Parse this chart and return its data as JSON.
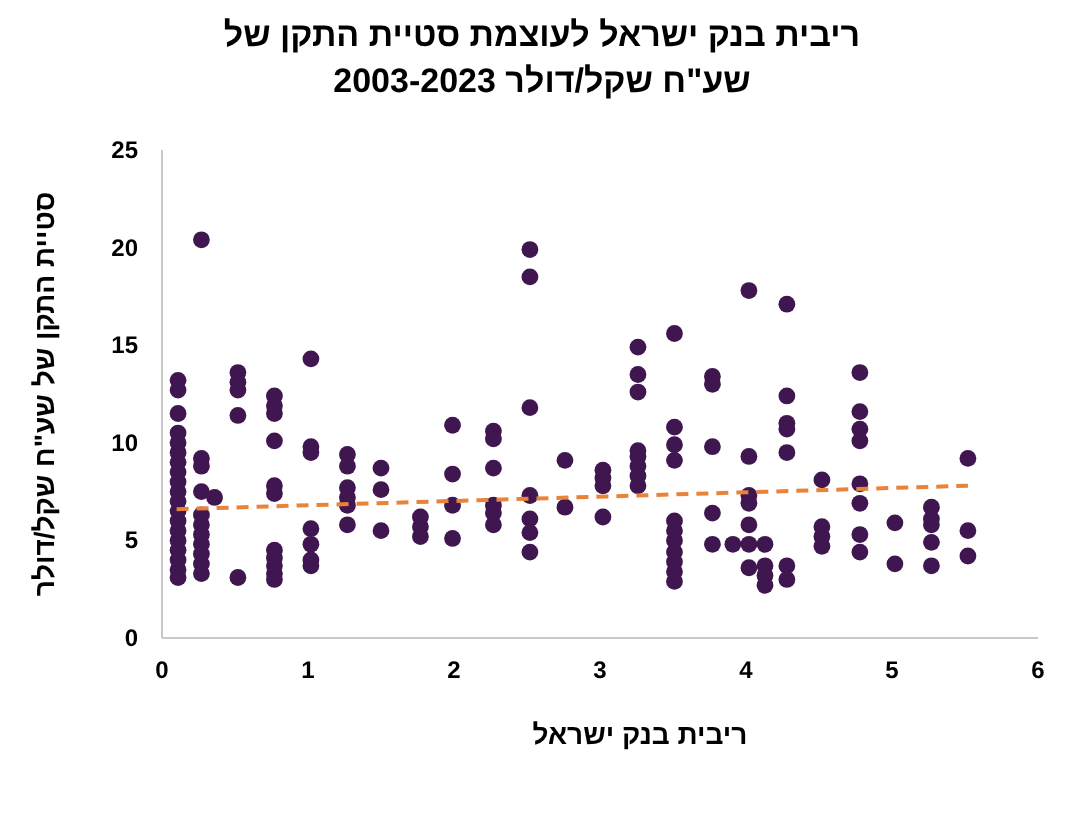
{
  "chart_data": {
    "type": "scatter",
    "title": "ריבית בנק ישראל לעוצמת סטיית התקן של שע\"ח שקל/דולר 2003-2023",
    "xlabel": "ריבית בנק ישראל",
    "ylabel": "סטיית התקן של שע\"ח שקל/דולר",
    "xlim": [
      0,
      6
    ],
    "ylim": [
      0,
      25
    ],
    "xticks": [
      0,
      1,
      2,
      3,
      4,
      5,
      6
    ],
    "yticks": [
      0,
      5,
      10,
      15,
      20,
      25
    ],
    "marker": "circle",
    "series": [
      {
        "color": "#3f1650",
        "x": [
          0.11,
          0.11,
          0.11,
          0.11,
          0.11,
          0.11,
          0.11,
          0.11,
          0.11,
          0.11,
          0.11,
          0.11,
          0.11,
          0.11,
          0.11,
          0.11,
          0.11,
          0.11,
          0.11,
          0.27,
          0.27,
          0.27,
          0.27,
          0.27,
          0.27,
          0.27,
          0.27,
          0.27,
          0.27,
          0.27,
          0.36,
          0.52,
          0.52,
          0.52,
          0.52,
          0.52,
          0.77,
          0.77,
          0.77,
          0.77,
          0.77,
          0.77,
          0.77,
          0.77,
          0.77,
          0.77,
          0.77,
          1.02,
          1.02,
          1.02,
          1.02,
          1.02,
          1.02,
          1.02,
          1.27,
          1.27,
          1.27,
          1.27,
          1.27,
          1.27,
          1.5,
          1.5,
          1.5,
          1.77,
          1.77,
          1.77,
          1.99,
          1.99,
          1.99,
          1.99,
          2.27,
          2.27,
          2.27,
          2.27,
          2.27,
          2.27,
          2.52,
          2.52,
          2.52,
          2.52,
          2.52,
          2.52,
          2.52,
          2.76,
          2.76,
          3.02,
          3.02,
          3.02,
          3.02,
          3.26,
          3.26,
          3.26,
          3.26,
          3.26,
          3.26,
          3.26,
          3.26,
          3.51,
          3.51,
          3.51,
          3.51,
          3.51,
          3.51,
          3.51,
          3.51,
          3.51,
          3.51,
          3.51,
          3.77,
          3.77,
          3.77,
          3.77,
          3.77,
          3.91,
          4.02,
          4.02,
          4.02,
          4.02,
          4.02,
          4.02,
          4.02,
          4.13,
          4.13,
          4.13,
          4.13,
          4.28,
          4.28,
          4.28,
          4.28,
          4.28,
          4.28,
          4.28,
          4.52,
          4.52,
          4.52,
          4.52,
          4.78,
          4.78,
          4.78,
          4.78,
          4.78,
          4.78,
          4.78,
          4.78,
          5.02,
          5.02,
          5.27,
          5.27,
          5.27,
          5.27,
          5.27,
          5.52,
          5.52,
          5.52
        ],
        "values": [
          13.2,
          12.7,
          11.5,
          10.5,
          10,
          9.5,
          9,
          8.5,
          8,
          7.5,
          7,
          6.5,
          6,
          5.5,
          5,
          4.5,
          4,
          3.5,
          3.1,
          20.4,
          9.2,
          8.8,
          7.5,
          6.3,
          5.8,
          5.3,
          4.8,
          4.3,
          3.8,
          3.3,
          7.2,
          13.6,
          13.1,
          12.7,
          11.4,
          3.1,
          12.4,
          11.9,
          11.5,
          10.1,
          7.8,
          7.4,
          4.5,
          4.1,
          3.7,
          3.3,
          3.0,
          14.3,
          9.8,
          9.5,
          5.6,
          4.8,
          4.0,
          3.7,
          9.4,
          8.8,
          7.7,
          7.2,
          6.8,
          5.8,
          8.7,
          7.6,
          5.5,
          6.2,
          5.7,
          5.2,
          10.9,
          8.4,
          6.8,
          5.1,
          10.6,
          10.2,
          8.7,
          6.8,
          6.4,
          5.8,
          19.9,
          18.5,
          11.8,
          7.3,
          6.1,
          5.4,
          4.4,
          9.1,
          6.7,
          8.6,
          8.2,
          7.8,
          6.2,
          14.9,
          13.5,
          12.6,
          9.6,
          9.3,
          8.8,
          8.3,
          7.8,
          15.6,
          10.8,
          9.9,
          9.1,
          6.0,
          5.5,
          5.0,
          4.4,
          3.9,
          3.4,
          2.9,
          13.4,
          13.0,
          9.8,
          6.4,
          4.8,
          4.8,
          17.8,
          9.3,
          7.3,
          6.9,
          5.8,
          4.8,
          3.6,
          4.8,
          3.7,
          3.2,
          2.7,
          17.1,
          12.4,
          11.0,
          10.7,
          9.5,
          3.7,
          3.0,
          8.1,
          5.7,
          5.2,
          4.7,
          13.6,
          11.6,
          10.7,
          10.1,
          7.9,
          6.9,
          5.3,
          4.4,
          5.9,
          3.8,
          6.7,
          6.1,
          5.8,
          4.9,
          3.7,
          9.2,
          5.5,
          4.2
        ]
      },
      {
        "type": "line",
        "color": "#e8833a",
        "line_style": "dashed",
        "marker": "none",
        "x": [
          0.1,
          5.52
        ],
        "values": [
          6.6,
          7.8
        ]
      }
    ]
  }
}
